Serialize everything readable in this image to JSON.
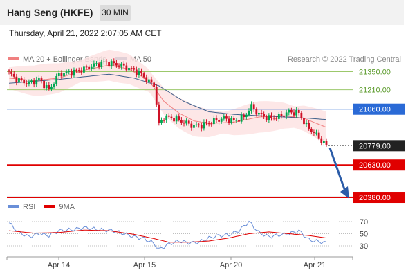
{
  "header": {
    "title": "Hang Seng (HKFE)",
    "timeframe": "30 MIN"
  },
  "timestamp": "Thursday, April 21, 2022 2:07:05 AM CET",
  "credit": "Research © 2022 Trading Central",
  "colors": {
    "up": "#00a651",
    "down": "#ce1126",
    "ma50": "#3e5f8a",
    "ma20": "#f08080",
    "band": "#fde3e3",
    "support": "#e00000",
    "resistance": "#9cc86b",
    "pivot": "#2a6ad6",
    "price": "#222222",
    "rsi": "#6a8fd8",
    "rsi_ma": "#e00000",
    "arrow": "#2b5ca8"
  },
  "chart_data": [
    {
      "type": "candlestick",
      "title": "",
      "legend": [
        {
          "name": "MA 20 + Bollinger Bands",
          "color": "#f08080"
        },
        {
          "name": "MA 50",
          "color": "#3e5f8a"
        }
      ],
      "legend_position": "top-left",
      "x_ticks": [
        "Apr 14",
        "Apr 15",
        "Apr 20",
        "Apr 21"
      ],
      "y_range": [
        20300,
        21550
      ],
      "levels": [
        {
          "label": "21350.00",
          "value": 21350,
          "role": "resistance"
        },
        {
          "label": "21210.00",
          "value": 21210,
          "role": "resistance"
        },
        {
          "label": "21060.00",
          "value": 21060,
          "role": "pivot"
        },
        {
          "label": "20779.00",
          "value": 20779,
          "role": "last"
        },
        {
          "label": "20630.00",
          "value": 20630,
          "role": "support"
        },
        {
          "label": "20380.00",
          "value": 20380,
          "role": "support"
        }
      ],
      "close_anchors": [
        [
          0,
          21340
        ],
        [
          3,
          21290
        ],
        [
          8,
          21260
        ],
        [
          12,
          21290
        ],
        [
          16,
          21210
        ],
        [
          20,
          21330
        ],
        [
          26,
          21350
        ],
        [
          30,
          21370
        ],
        [
          34,
          21400
        ],
        [
          38,
          21420
        ],
        [
          42,
          21410
        ],
        [
          46,
          21390
        ],
        [
          50,
          21360
        ],
        [
          53,
          21330
        ],
        [
          56,
          21270
        ],
        [
          58,
          21250
        ],
        [
          59,
          21100
        ],
        [
          60,
          20940
        ],
        [
          62,
          21000
        ],
        [
          66,
          20990
        ],
        [
          70,
          20960
        ],
        [
          74,
          20930
        ],
        [
          78,
          20940
        ],
        [
          82,
          20970
        ],
        [
          86,
          20990
        ],
        [
          90,
          20970
        ],
        [
          94,
          21000
        ],
        [
          97,
          21080
        ],
        [
          100,
          21020
        ],
        [
          104,
          20990
        ],
        [
          108,
          21000
        ],
        [
          112,
          21040
        ],
        [
          116,
          21030
        ],
        [
          119,
          20930
        ],
        [
          122,
          20880
        ],
        [
          125,
          20820
        ],
        [
          127,
          20780
        ]
      ],
      "ma20_anchors": [
        [
          0,
          21300
        ],
        [
          10,
          21280
        ],
        [
          20,
          21300
        ],
        [
          30,
          21360
        ],
        [
          40,
          21400
        ],
        [
          48,
          21370
        ],
        [
          56,
          21280
        ],
        [
          62,
          21120
        ],
        [
          68,
          21030
        ],
        [
          74,
          20970
        ],
        [
          80,
          20950
        ],
        [
          90,
          20960
        ],
        [
          100,
          21000
        ],
        [
          110,
          21010
        ],
        [
          118,
          20990
        ],
        [
          127,
          20920
        ]
      ],
      "ma50_anchors": [
        [
          0,
          21260
        ],
        [
          20,
          21290
        ],
        [
          40,
          21330
        ],
        [
          50,
          21300
        ],
        [
          60,
          21240
        ],
        [
          70,
          21120
        ],
        [
          80,
          21040
        ],
        [
          90,
          21020
        ],
        [
          100,
          21010
        ],
        [
          110,
          21000
        ],
        [
          120,
          20990
        ],
        [
          127,
          20980
        ]
      ],
      "band_width": 110,
      "forecast": {
        "from": 20779,
        "to": 20380
      }
    },
    {
      "type": "line",
      "title": "",
      "legend": [
        {
          "name": "RSI",
          "color": "#6a8fd8"
        },
        {
          "name": "9MA",
          "color": "#e00000"
        }
      ],
      "legend_position": "top-left",
      "y_range": [
        20,
        80
      ],
      "y_ticks": [
        {
          "label": "70",
          "value": 70
        },
        {
          "label": "50",
          "value": 50
        },
        {
          "label": "30",
          "value": 30
        }
      ],
      "rsi_anchors": [
        [
          0,
          68
        ],
        [
          4,
          52
        ],
        [
          8,
          45
        ],
        [
          12,
          50
        ],
        [
          16,
          47
        ],
        [
          20,
          55
        ],
        [
          26,
          57
        ],
        [
          30,
          60
        ],
        [
          34,
          58
        ],
        [
          38,
          56
        ],
        [
          42,
          55
        ],
        [
          46,
          50
        ],
        [
          50,
          45
        ],
        [
          54,
          42
        ],
        [
          58,
          34
        ],
        [
          60,
          24
        ],
        [
          64,
          33
        ],
        [
          68,
          38
        ],
        [
          72,
          35
        ],
        [
          76,
          36
        ],
        [
          80,
          43
        ],
        [
          84,
          47
        ],
        [
          88,
          48
        ],
        [
          92,
          55
        ],
        [
          96,
          70
        ],
        [
          100,
          52
        ],
        [
          104,
          45
        ],
        [
          108,
          48
        ],
        [
          112,
          50
        ],
        [
          116,
          55
        ],
        [
          120,
          40
        ],
        [
          124,
          37
        ],
        [
          127,
          35
        ]
      ],
      "rsi_ma_anchors": [
        [
          0,
          55
        ],
        [
          10,
          51
        ],
        [
          20,
          52
        ],
        [
          30,
          56
        ],
        [
          40,
          55
        ],
        [
          50,
          49
        ],
        [
          58,
          42
        ],
        [
          64,
          36
        ],
        [
          72,
          36
        ],
        [
          80,
          38
        ],
        [
          88,
          43
        ],
        [
          96,
          50
        ],
        [
          104,
          53
        ],
        [
          112,
          50
        ],
        [
          120,
          47
        ],
        [
          127,
          43
        ]
      ]
    }
  ]
}
